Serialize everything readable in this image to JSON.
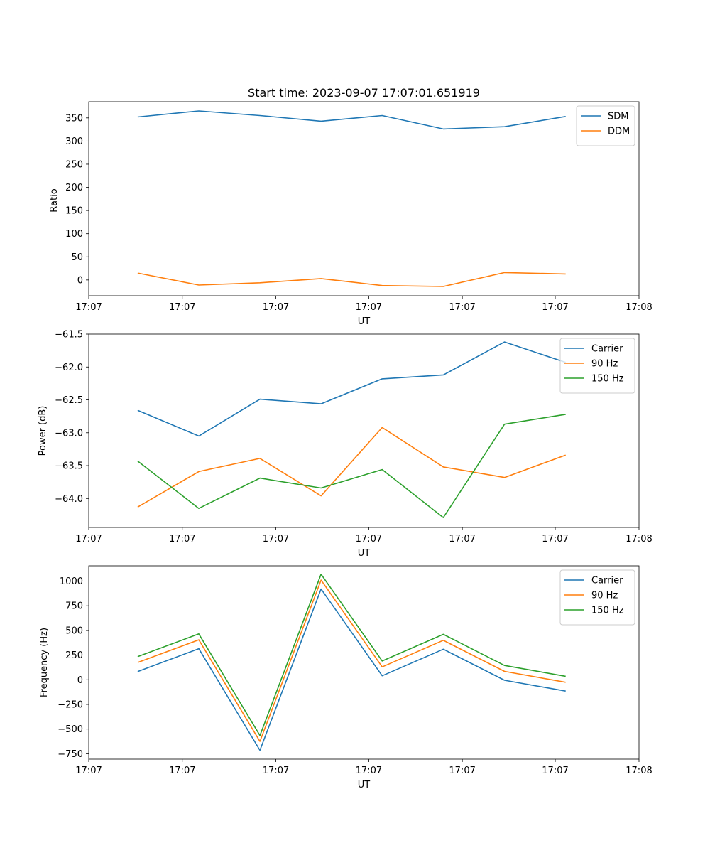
{
  "chart_data": [
    {
      "type": "line",
      "title": "Start time: 2023-09-07 17:07:01.651919",
      "xlabel": "UT",
      "ylabel": "Ratio",
      "x": [
        1,
        2,
        3,
        4,
        5,
        6,
        7,
        8
      ],
      "xlim": [
        0.2,
        9.2
      ],
      "ylim": [
        -34,
        385
      ],
      "yticks": [
        0,
        50,
        100,
        150,
        200,
        250,
        300,
        350
      ],
      "xticks": [
        0.2,
        1.73,
        3.26,
        4.78,
        6.31,
        7.83,
        9.2
      ],
      "xtick_labels": [
        "17:07",
        "17:07",
        "17:07",
        "17:07",
        "17:07",
        "17:07",
        "17:08"
      ],
      "legend_loc": "upper right",
      "series": [
        {
          "name": "SDM",
          "color": "#1f77b4",
          "values": [
            352,
            365,
            355,
            343,
            355,
            326,
            331,
            353
          ]
        },
        {
          "name": "DDM",
          "color": "#ff7f0e",
          "values": [
            15,
            -11,
            -6,
            3,
            -12,
            -14,
            16,
            13
          ]
        }
      ]
    },
    {
      "type": "line",
      "title": "",
      "xlabel": "UT",
      "ylabel": "Power (dB)",
      "x": [
        1,
        2,
        3,
        4,
        5,
        6,
        7,
        8
      ],
      "xlim": [
        0.2,
        9.2
      ],
      "ylim": [
        -64.44,
        -61.5
      ],
      "yticks": [
        -61.5,
        -62.0,
        -62.5,
        -63.0,
        -63.5,
        -64.0
      ],
      "ytick_labels": [
        "−61.5",
        "−62.0",
        "−62.5",
        "−63.0",
        "−63.5",
        "−64.0"
      ],
      "xticks": [
        0.2,
        1.73,
        3.26,
        4.78,
        6.31,
        7.83,
        9.2
      ],
      "xtick_labels": [
        "17:07",
        "17:07",
        "17:07",
        "17:07",
        "17:07",
        "17:07",
        "17:08"
      ],
      "legend_loc": "upper right",
      "series": [
        {
          "name": "Carrier",
          "color": "#1f77b4",
          "values": [
            -62.66,
            -63.05,
            -62.49,
            -62.56,
            -62.18,
            -62.12,
            -61.62,
            -61.93
          ]
        },
        {
          "name": "90 Hz",
          "color": "#ff7f0e",
          "values": [
            -64.13,
            -63.59,
            -63.39,
            -63.96,
            -62.92,
            -63.52,
            -63.68,
            -63.34
          ]
        },
        {
          "name": "150 Hz",
          "color": "#2ca02c",
          "values": [
            -63.43,
            -64.15,
            -63.69,
            -63.84,
            -63.56,
            -64.29,
            -62.87,
            -62.72
          ]
        }
      ]
    },
    {
      "type": "line",
      "title": "",
      "xlabel": "UT",
      "ylabel": "Frequency (Hz)",
      "x": [
        1,
        2,
        3,
        4,
        5,
        6,
        7,
        8
      ],
      "xlim": [
        0.2,
        9.2
      ],
      "ylim": [
        -805,
        1155
      ],
      "yticks": [
        1000,
        750,
        500,
        250,
        0,
        -250,
        -500,
        -750
      ],
      "ytick_labels": [
        "1000",
        "750",
        "500",
        "250",
        "0",
        "−250",
        "−500",
        "−750"
      ],
      "xticks": [
        0.2,
        1.73,
        3.26,
        4.78,
        6.31,
        7.83,
        9.2
      ],
      "xtick_labels": [
        "17:07",
        "17:07",
        "17:07",
        "17:07",
        "17:07",
        "17:07",
        "17:08"
      ],
      "legend_loc": "upper right",
      "series": [
        {
          "name": "Carrier",
          "color": "#1f77b4",
          "values": [
            83,
            315,
            -715,
            920,
            40,
            310,
            -5,
            -115
          ]
        },
        {
          "name": "90 Hz",
          "color": "#ff7f0e",
          "values": [
            175,
            405,
            -625,
            1010,
            130,
            400,
            85,
            -25
          ]
        },
        {
          "name": "150 Hz",
          "color": "#2ca02c",
          "values": [
            235,
            465,
            -565,
            1070,
            190,
            460,
            145,
            35
          ]
        }
      ]
    }
  ]
}
